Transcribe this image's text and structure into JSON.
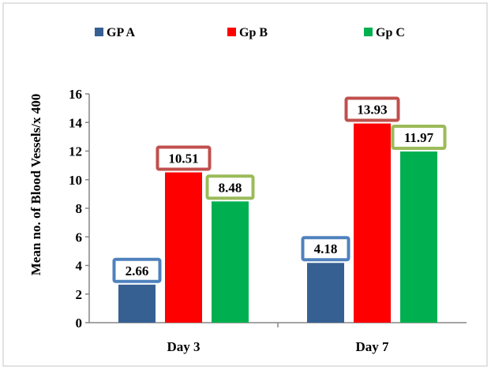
{
  "colors": {
    "gp_a": "#376092",
    "gp_b": "#FF0000",
    "gp_c": "#00B050",
    "label_border_a": "#4F81BD",
    "label_border_b": "#C0504D",
    "label_border_c": "#9BBB59",
    "axis": "#868686",
    "frame": "#D9D9D9"
  },
  "chart_data": {
    "type": "bar",
    "title": "",
    "xlabel": "",
    "ylabel": "Mean no. of Blood Vessels/x 400",
    "categories": [
      "Day 3",
      "Day 7"
    ],
    "ylim": [
      0,
      16
    ],
    "yticks": [
      0,
      2,
      4,
      6,
      8,
      10,
      12,
      14,
      16
    ],
    "grid": false,
    "legend_position": "top",
    "series": [
      {
        "name": "GP A",
        "values": [
          2.66,
          4.18
        ],
        "labels": [
          "2.66",
          "4.18"
        ]
      },
      {
        "name": "Gp B",
        "values": [
          10.51,
          13.93
        ],
        "labels": [
          "10.51",
          "13.93"
        ]
      },
      {
        "name": "Gp C",
        "values": [
          8.48,
          11.97
        ],
        "labels": [
          "8.48",
          "11.97"
        ]
      }
    ]
  }
}
